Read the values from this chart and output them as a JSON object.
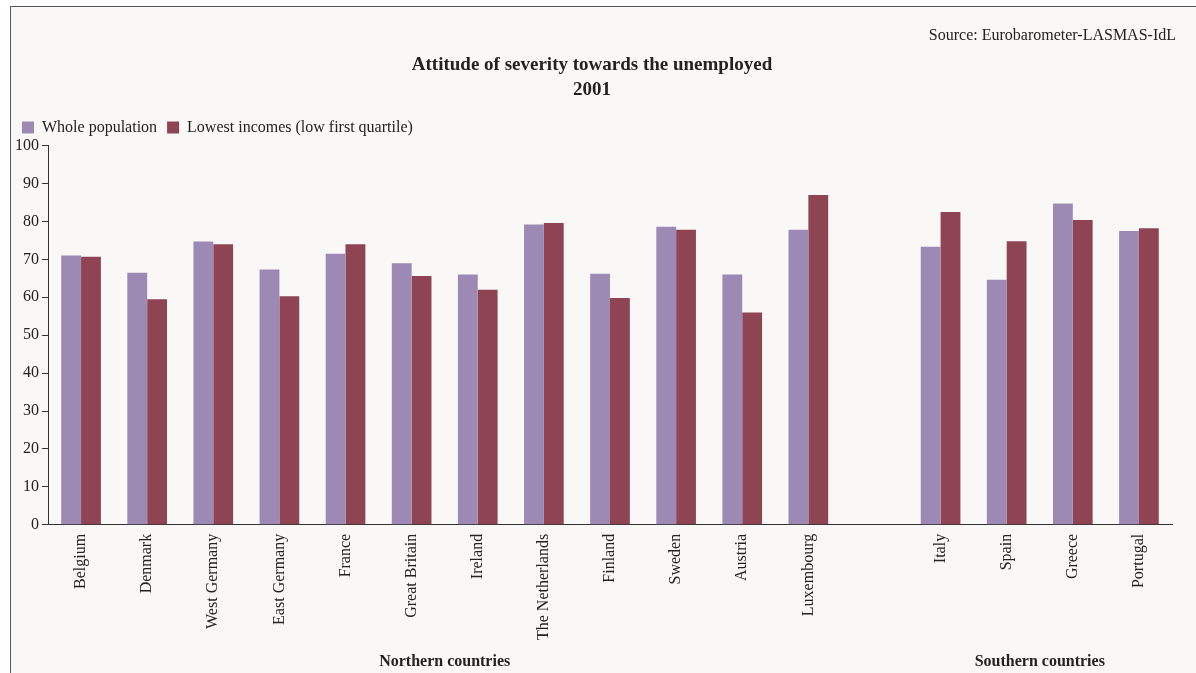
{
  "chart_data": {
    "type": "bar",
    "title": "Attitude of severity towards the unemployed",
    "subtitle": "2001",
    "categories": [
      "Belgium",
      "Denmark",
      "West Germany",
      "East Germany",
      "France",
      "Great Britain",
      "Ireland",
      "The Netherlands",
      "Finland",
      "Sweden",
      "Austria",
      "Luxembourg",
      null,
      "Italy",
      "Spain",
      "Greece",
      "Portugal"
    ],
    "series": [
      {
        "name": "Whole population",
        "color": "#9c8ab4",
        "values": [
          71,
          66.5,
          74.7,
          67.3,
          71.5,
          69,
          66,
          79.2,
          66.2,
          78.6,
          66,
          77.8,
          null,
          73.3,
          64.6,
          84.7,
          77.5
        ]
      },
      {
        "name": "Lowest incomes (low first quartile)",
        "color": "#8e4453",
        "values": [
          70.7,
          59.5,
          74,
          60.3,
          74,
          65.6,
          62,
          79.6,
          59.8,
          77.8,
          56,
          87,
          null,
          82.5,
          74.8,
          80.4,
          78.2
        ]
      }
    ],
    "ylim": [
      0,
      100
    ],
    "yticks": [
      0,
      10,
      20,
      30,
      40,
      50,
      60,
      70,
      80,
      90,
      100
    ],
    "grid": false,
    "legend": "top left",
    "annotations": [
      "Source: Eurobarometer-LASMAS-IdL",
      "Northern countries",
      "Southern countries"
    ]
  }
}
